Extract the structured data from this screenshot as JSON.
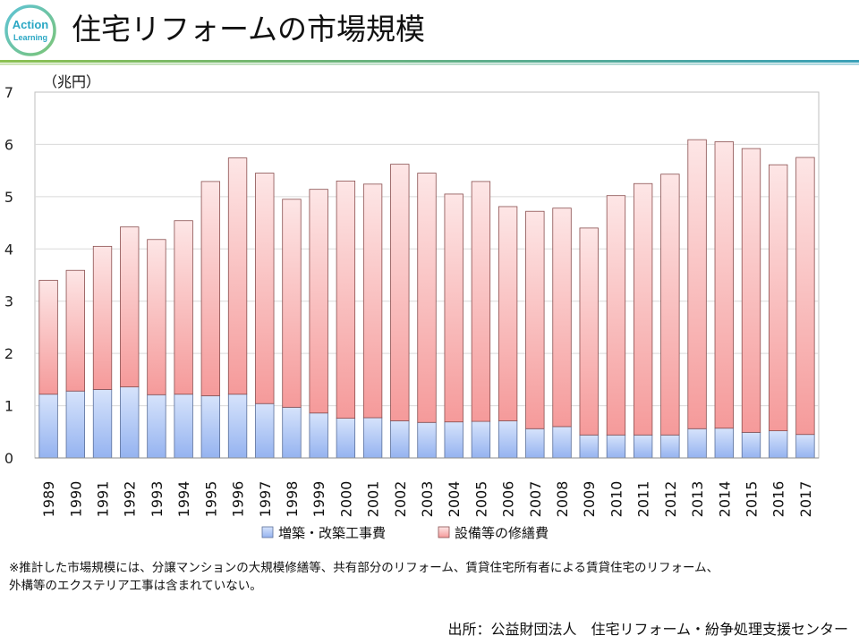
{
  "header": {
    "title": "住宅リフォームの市場規模",
    "logo_text": [
      "Action",
      "Learning"
    ],
    "logo_icon": "action-learning-logo",
    "rule_colors": [
      "#8cc152",
      "#3aa0b8"
    ]
  },
  "chart_data": {
    "type": "bar",
    "stacked": true,
    "title": "住宅リフォームの市場規模",
    "ylabel": "（兆円）",
    "xlabel": "",
    "ylim": [
      0,
      7
    ],
    "yticks": [
      0,
      1,
      2,
      3,
      4,
      5,
      6,
      7
    ],
    "grid": true,
    "legend_position": "bottom",
    "categories": [
      "1989",
      "1990",
      "1991",
      "1992",
      "1993",
      "1994",
      "1995",
      "1996",
      "1997",
      "1998",
      "1999",
      "2000",
      "2001",
      "2002",
      "2003",
      "2004",
      "2005",
      "2006",
      "2007",
      "2008",
      "2009",
      "2010",
      "2011",
      "2012",
      "2013",
      "2014",
      "2015",
      "2016",
      "2017"
    ],
    "series": [
      {
        "name": "増築・改築工事費",
        "color_top": "#d6e3fb",
        "color_bottom": "#95b3f0",
        "stroke": "#5a6f9a",
        "values": [
          1.22,
          1.28,
          1.31,
          1.36,
          1.21,
          1.22,
          1.19,
          1.22,
          1.04,
          0.97,
          0.86,
          0.76,
          0.77,
          0.71,
          0.68,
          0.69,
          0.7,
          0.71,
          0.56,
          0.6,
          0.44,
          0.44,
          0.44,
          0.44,
          0.56,
          0.57,
          0.49,
          0.52,
          0.45
        ]
      },
      {
        "name": "設備等の修繕費",
        "color_top": "#fde6e6",
        "color_bottom": "#f59a9a",
        "stroke": "#8a4f4f",
        "values": [
          2.18,
          2.31,
          2.74,
          3.06,
          2.97,
          3.32,
          4.1,
          4.52,
          4.41,
          3.98,
          4.28,
          4.54,
          4.47,
          4.91,
          4.77,
          4.36,
          4.59,
          4.1,
          4.16,
          4.18,
          3.96,
          4.58,
          4.81,
          4.99,
          5.53,
          5.48,
          5.43,
          5.09,
          5.3
        ]
      }
    ]
  },
  "footer": {
    "note_lines": [
      "※推計した市場規模には、分譲マンションの大規模修繕等、共有部分のリフォーム、賃貸住宅所有者による賃貸住宅のリフォーム、",
      "外構等のエクステリア工事は含まれていない。"
    ],
    "source": "出所：公益財団法人　住宅リフォーム・紛争処理支援センター"
  }
}
